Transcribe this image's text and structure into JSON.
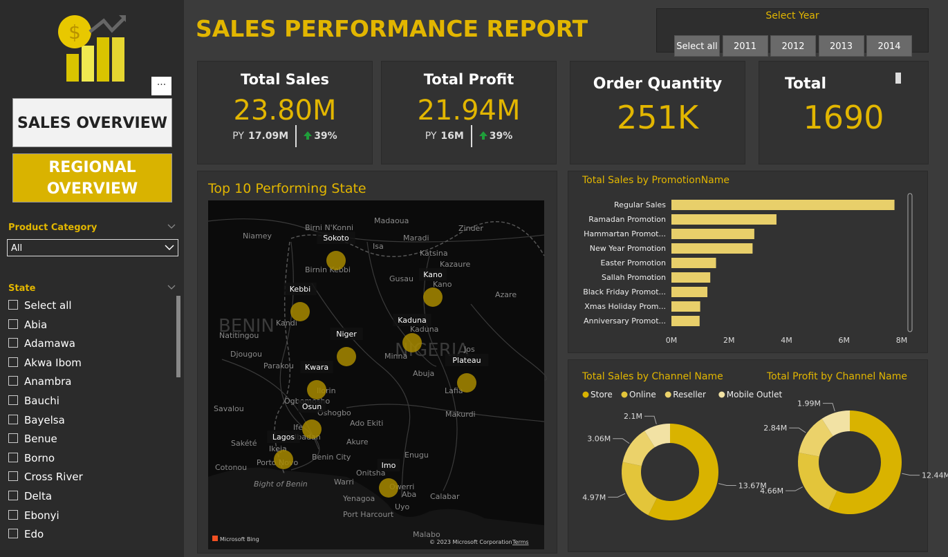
{
  "sidebar": {
    "nav": [
      "SALES OVERVIEW",
      "REGIONAL OVERVIEW"
    ],
    "more": "···",
    "product_category": {
      "label": "Product Category",
      "selected": "All"
    },
    "state": {
      "label": "State",
      "items": [
        "Select all",
        "Abia",
        "Adamawa",
        "Akwa Ibom",
        "Anambra",
        "Bauchi",
        "Bayelsa",
        "Benue",
        "Borno",
        "Cross River",
        "Delta",
        "Ebonyi",
        "Edo"
      ]
    }
  },
  "header": {
    "title": "SALES PERFORMANCE REPORT"
  },
  "year_slicer": {
    "label": "Select Year",
    "options": [
      "Select all",
      "2011",
      "2012",
      "2013",
      "2014"
    ]
  },
  "kpis": [
    {
      "title": "Total Sales",
      "value": "23.80M",
      "py_label": "PY",
      "py_value": "17.09M",
      "change": "39%"
    },
    {
      "title": "Total Profit",
      "value": "21.94M",
      "py_label": "PY",
      "py_value": "16M",
      "change": "39%"
    },
    {
      "title": "Order Quantity",
      "value": "251K"
    },
    {
      "title": "Total",
      "value": "1690"
    }
  ],
  "map": {
    "title": "Top 10 Performing State",
    "states": [
      "Sokoto",
      "Kebbi",
      "Kano",
      "Kaduna",
      "Niger",
      "Kwara",
      "Plateau",
      "Osun",
      "Lagos",
      "Imo"
    ],
    "places": [
      "Niamey",
      "Birni N'Konni",
      "Madaoua",
      "Zinder",
      "Maradi",
      "Isa",
      "Katsina",
      "Kazaure",
      "Gusau",
      "Azare",
      "BENIN",
      "Kandi",
      "Natitingou",
      "Djougou",
      "Parakou",
      "NIGERIA",
      "Minna",
      "Jos",
      "Abuja",
      "Lafia",
      "Makurdi",
      "Ogbomosho",
      "Ilorin",
      "Oshogbo",
      "Ado Ekiti",
      "Akure",
      "Ibadan",
      "Ife",
      "Savalou",
      "Sakété",
      "Cotonou",
      "Porto Novo",
      "Ikeja",
      "Bight of Benin",
      "Benin City",
      "Warri",
      "Onitsha",
      "Owerri",
      "Aba",
      "Enugu",
      "Yenagoa",
      "Port Harcourt",
      "Uyo",
      "Calabar",
      "Birnin Kebbi",
      "Kano",
      "Kaduna",
      "Malabo"
    ],
    "attribution": [
      "Microsoft Bing",
      "© 2023 Microsoft Corporation",
      "Terms"
    ]
  },
  "chart_data": [
    {
      "type": "bar",
      "orientation": "horizontal",
      "title": "Total Sales by PromotionName",
      "categories": [
        "Regular Sales",
        "Ramadan Promotion",
        "Hammartan Promot...",
        "New Year Promotion",
        "Easter Promotion",
        "Sallah Promotion",
        "Black Friday Promot...",
        "Xmas Holiday Prom...",
        "Anniversary Promot..."
      ],
      "values": [
        7.75,
        3.65,
        2.88,
        2.82,
        1.55,
        1.35,
        1.25,
        1.0,
        0.98
      ],
      "color": "#e8cf6a",
      "xlim": [
        0,
        8
      ],
      "xticks": [
        {
          "value": 0,
          "label": "0M"
        },
        {
          "value": 2,
          "label": "2M"
        },
        {
          "value": 4,
          "label": "4M"
        },
        {
          "value": 6,
          "label": "6M"
        },
        {
          "value": 8,
          "label": "8M"
        }
      ]
    },
    {
      "type": "donut",
      "title": "Total Sales by Channel Name",
      "categories": [
        "Store",
        "Online",
        "Reseller",
        "Mobile Outlet"
      ],
      "colors": [
        "#d9b300",
        "#e3c53a",
        "#ebd26a",
        "#f2e2a4"
      ],
      "values": [
        13.67,
        4.97,
        3.06,
        2.1
      ],
      "value_labels": [
        "13.67M",
        "4.97M",
        "3.06M",
        "2.1M"
      ],
      "legend": true
    },
    {
      "type": "donut",
      "title": "Total Profit by Channel Name",
      "categories": [
        "Store",
        "Online",
        "Reseller",
        "Mobile Outlet"
      ],
      "colors": [
        "#d9b300",
        "#e3c53a",
        "#ebd26a",
        "#f2e2a4"
      ],
      "values": [
        12.44,
        4.66,
        2.84,
        1.99
      ],
      "value_labels": [
        "12.44M",
        "4.66M",
        "2.84M",
        "1.99M"
      ],
      "legend": false
    }
  ]
}
